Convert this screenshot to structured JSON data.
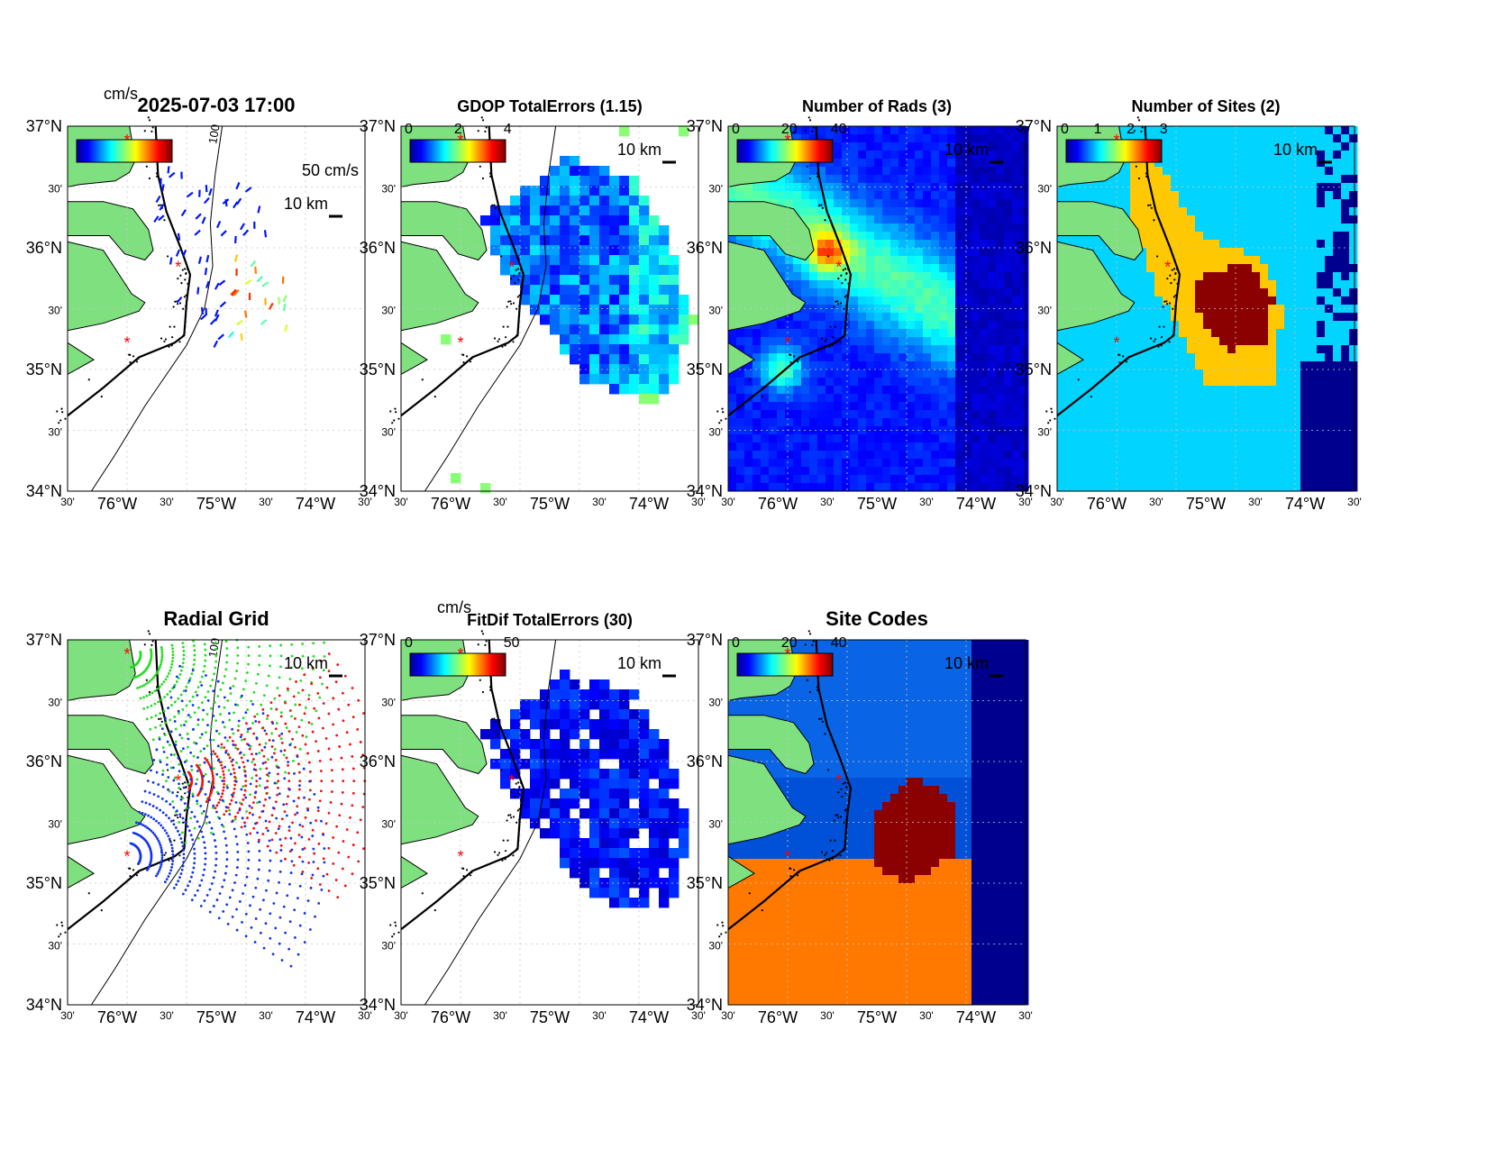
{
  "figure": {
    "timestamp": "2025-07-03 17:00"
  },
  "units": {
    "cms": "cm/s",
    "scale_label": "10 km",
    "vec_label": "50 cm/s"
  },
  "axes_labels": {
    "lat": [
      "37°N",
      "30'",
      "36°N",
      "30'",
      "35°N",
      "30'",
      "34°N"
    ],
    "lon": [
      "30'",
      "76°W",
      "30'",
      "75°W",
      "30'",
      "74°W",
      "30'"
    ]
  },
  "panels": [
    {
      "id": "velocity",
      "title": "2025-07-03 17:00",
      "colorbar_ticks": [],
      "colorbar_units": "cm/s",
      "contour_label": "100"
    },
    {
      "id": "gdop",
      "title": "GDOP TotalErrors (1.15)",
      "colorbar_ticks": [
        "0",
        "2",
        "4"
      ],
      "contour_label": "1.15"
    },
    {
      "id": "nrads",
      "title": "Number of Rads (3)",
      "colorbar_ticks": [
        "0",
        "20",
        "40"
      ],
      "contour_label": "3"
    },
    {
      "id": "nsites",
      "title": "Number of Sites (2)",
      "colorbar_ticks": [
        "0",
        "1",
        "2",
        "3"
      ],
      "contour_label": "2"
    },
    {
      "id": "radgrid",
      "title": "Radial Grid",
      "contour_label": "100"
    },
    {
      "id": "fitdif",
      "title": "FitDif TotalErrors (30)",
      "colorbar_ticks": [
        "0",
        "50"
      ],
      "colorbar_units": "cm/s"
    },
    {
      "id": "sitecodes",
      "title": "Site Codes",
      "colorbar_ticks": [
        "0",
        "20",
        "40"
      ]
    }
  ],
  "colors": {
    "land": "#7fe07f",
    "site_marker": "#ff0000",
    "grid_green": "#22dd22",
    "grid_red": "#ee1111",
    "grid_blue": "#1133ee"
  }
}
